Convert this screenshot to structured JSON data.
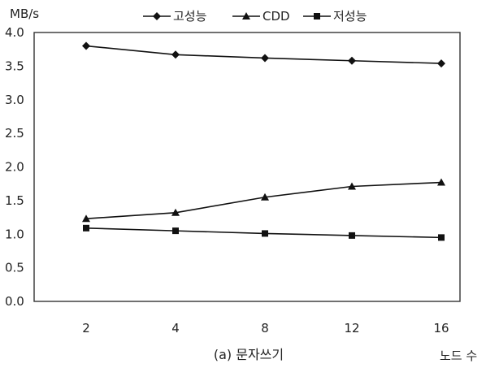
{
  "chart_data": {
    "type": "line",
    "caption": "(a) 문자쓰기",
    "title": "",
    "xlabel": "노드 수",
    "ylabel": "MB/s",
    "x": [
      2,
      4,
      8,
      12,
      16
    ],
    "ylim": [
      0.0,
      4.0
    ],
    "yticks": [
      "0.0",
      "0.5",
      "1.0",
      "1.5",
      "2.0",
      "2.5",
      "3.0",
      "3.5",
      "4.0"
    ],
    "grid": false,
    "legend_position": "top",
    "series": [
      {
        "name": "고성능",
        "marker": "diamond",
        "values": [
          3.8,
          3.67,
          3.62,
          3.58,
          3.54
        ]
      },
      {
        "name": "CDD",
        "marker": "triangle",
        "values": [
          1.23,
          1.32,
          1.55,
          1.71,
          1.77
        ]
      },
      {
        "name": "저성능",
        "marker": "square",
        "values": [
          1.09,
          1.05,
          1.01,
          0.98,
          0.95
        ]
      }
    ]
  }
}
